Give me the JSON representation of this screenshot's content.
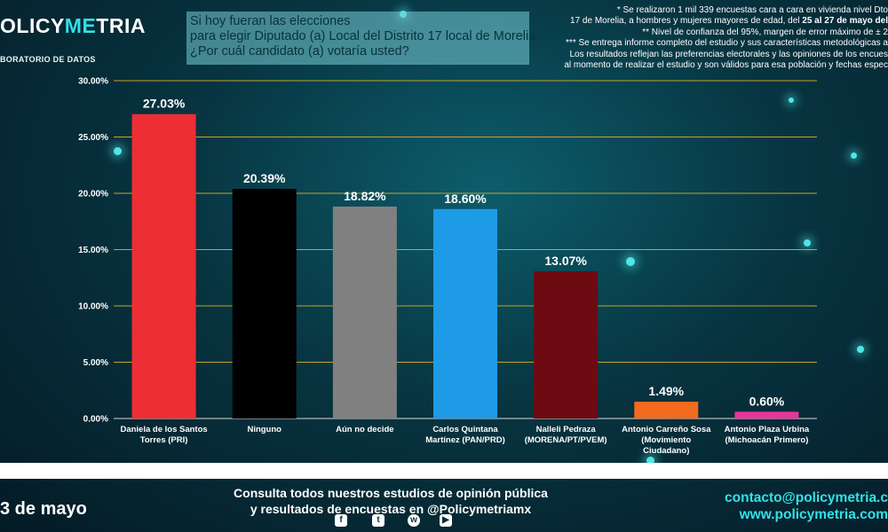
{
  "header": {
    "logo_part1": "OLICY",
    "logo_accent": "ME",
    "logo_part2": "TRIA",
    "tagline": "BORATORIO DE DATOS",
    "question_lines": [
      "Si hoy fueran las elecciones",
      "para elegir Diputado (a) Local del Distrito 17 local de Morelia,",
      "¿Por cuál candidato (a) votaría usted?"
    ]
  },
  "notes": {
    "line1": "* Se realizaron 1 mil 339 encuestas cara a cara en vivienda nivel Dto",
    "line2_pre": "17 de Morelia, a hombres y mujeres mayores de edad, del ",
    "line2_bold": "25 al 27 de mayo del",
    "line3": "** Nivel de confianza del 95%, margen de error máximo de ± 2",
    "line4": "*** Se entrega informe completo del estudio y sus características metodológicas a",
    "line5": "Los resultados reflejan las preferencias electorales y las opiniones de los encues",
    "line6": "al momento de realizar el estudio y son válidos para esa población y fechas espec"
  },
  "chart_data": {
    "type": "bar",
    "title": "Si hoy fueran las elecciones para elegir Diputado (a) Local del Distrito 17 local de Morelia, ¿Por cuál candidato (a) votaría usted?",
    "categories": [
      [
        "Daniela de los Santos",
        "Torres (PRI)"
      ],
      [
        "Ninguno"
      ],
      [
        "Aún no decide"
      ],
      [
        "Carlos Quintana",
        "Martínez (PAN/PRD)"
      ],
      [
        "Nalleli Pedraza",
        "(MORENA/PT/PVEM)"
      ],
      [
        "Antonio Carreño Sosa",
        "(Movimiento",
        "Ciudadano)"
      ],
      [
        "Antonio Plaza Urbina",
        "(Michoacán Primero)"
      ]
    ],
    "values": [
      27.03,
      20.39,
      18.82,
      18.6,
      13.07,
      1.49,
      0.6
    ],
    "value_labels": [
      "27.03%",
      "20.39%",
      "18.82%",
      "18.60%",
      "13.07%",
      "1.49%",
      "0.60%"
    ],
    "colors": [
      "#ee2e35",
      "#000000",
      "#808080",
      "#1e9be6",
      "#6e0a12",
      "#f26b1f",
      "#e8359a"
    ],
    "ylim": [
      0,
      30
    ],
    "yticks": [
      0,
      5,
      10,
      15,
      20,
      25,
      30
    ],
    "ytick_labels": [
      "0.00%",
      "5.00%",
      "10.00%",
      "15.00%",
      "20.00%",
      "25.00%",
      "30.00%"
    ],
    "grid": true,
    "gridline_color": "#c9a227",
    "xlabel": "",
    "ylabel": ""
  },
  "footer": {
    "line1": "Consulta todos nuestros estudios de opinión pública",
    "line2": "y resultados de encuestas en @Policymetriamx",
    "date": "3 de mayo",
    "email": "contacto@policymetria.c",
    "website": "www.policymetria.com",
    "social_icons": [
      "facebook-icon",
      "twitter-icon",
      "whatsapp-icon",
      "youtube-icon"
    ]
  }
}
